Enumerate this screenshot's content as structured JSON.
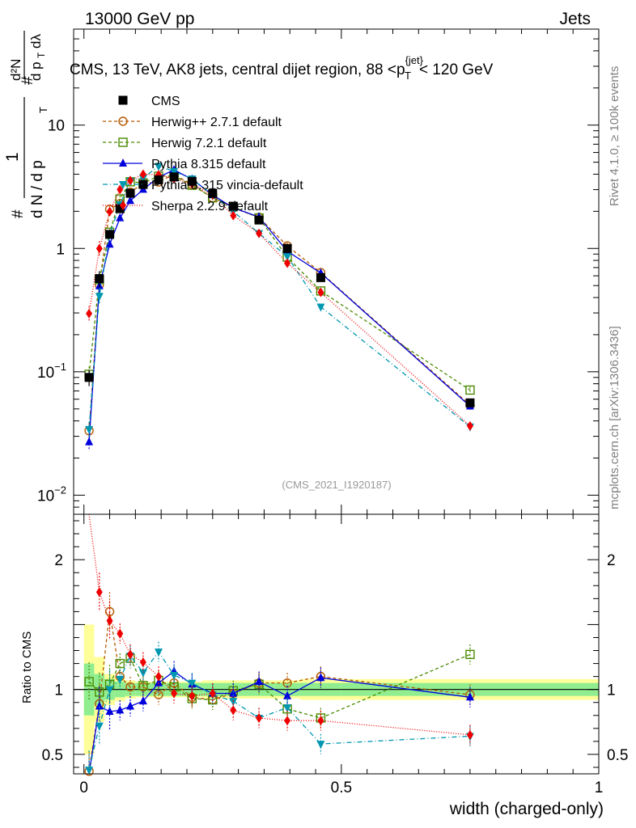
{
  "header": {
    "energy_label": "13000 GeV pp",
    "category_label": "Jets"
  },
  "side_labels": {
    "rivet": "Rivet 4.1.0, ≥ 100k events",
    "mcplots": "mcplots.cern.ch [arXiv:1306.3436]"
  },
  "chart_data": {
    "type": "scatter",
    "title": "CMS, 13 TeV, AK8 jets, central dijet region, 88 <p_T^{jet}< 120 GeV",
    "title_parts": {
      "pre": "CMS, 13 TeV, AK8 jets, central dijet region, 88 <p",
      "sub": "T",
      "sup": "{jet}",
      "post": "< 120 GeV"
    },
    "analysis_id": "(CMS_2021_I1920187)",
    "xlabel": "width (charged-only)",
    "ylabel": "1/N dN/dp_T dλ  (# 1 over # d N / d p_T # d²N over # d p_T dλ)",
    "ylabel_parts": {
      "hash": "#",
      "one": "1",
      "dn": "d N / d p",
      "t": "T",
      "d2n": "d²N",
      "dp": "d p",
      "dl": "dλ"
    },
    "ratio_ylabel": "Ratio to CMS",
    "xlim": [
      -0.02,
      1.0
    ],
    "ylim_main": [
      0.007,
      60
    ],
    "yscale_main": "log",
    "ylim_ratio": [
      0.35,
      2.35
    ],
    "x_ticks": [
      0,
      0.5,
      1
    ],
    "x_tick_labels": [
      "0",
      "0.5",
      "1"
    ],
    "y_main_ticks": [
      0.01,
      0.1,
      1,
      10
    ],
    "y_main_tick_labels": [
      {
        "base": "10",
        "exp": "−2"
      },
      {
        "base": "10",
        "exp": "−1"
      },
      {
        "base": "1",
        "exp": ""
      },
      {
        "base": "10",
        "exp": ""
      }
    ],
    "y_ratio_ticks": [
      0.5,
      1,
      2
    ],
    "y_ratio_tick_labels": [
      "0.5",
      "1",
      "2"
    ],
    "x": [
      0.01,
      0.03,
      0.05,
      0.07,
      0.09,
      0.115,
      0.145,
      0.175,
      0.21,
      0.25,
      0.29,
      0.34,
      0.395,
      0.46,
      0.75
    ],
    "legend": {
      "placement": "top-left",
      "entries": [
        "CMS",
        "Herwig++ 2.7.1 default",
        "Herwig 7.2.1 default",
        "Pythia 8.315 default",
        "Pythia 8.315 vincia-default",
        "Sherpa 2.2.9 default"
      ]
    },
    "data": {
      "name": "CMS",
      "color": "#000000",
      "marker": "square",
      "values": [
        0.09,
        0.57,
        1.3,
        2.1,
        2.8,
        3.3,
        3.6,
        3.8,
        3.5,
        2.8,
        2.2,
        1.7,
        1.0,
        0.58,
        0.056
      ]
    },
    "bands": {
      "stat_color": "#90ee90",
      "total_color": "#ffff99",
      "stat_rel": [
        0.2,
        0.12,
        0.08,
        0.06,
        0.05,
        0.05,
        0.05,
        0.05,
        0.05,
        0.05,
        0.05,
        0.05,
        0.05,
        0.05,
        0.05
      ],
      "total_rel": [
        0.5,
        0.25,
        0.12,
        0.09,
        0.07,
        0.06,
        0.06,
        0.06,
        0.06,
        0.07,
        0.07,
        0.07,
        0.07,
        0.08,
        0.08
      ],
      "edges": [
        0.0,
        0.02,
        0.04,
        0.06,
        0.08,
        0.1,
        0.13,
        0.16,
        0.19,
        0.23,
        0.27,
        0.31,
        0.37,
        0.42,
        0.5,
        1.0
      ]
    },
    "series": [
      {
        "name": "Herwig++ 2.7.1 default",
        "color": "#b35900",
        "marker": "open-circle",
        "dash": "4,3",
        "ratio": [
          0.37,
          0.89,
          1.6,
          1.1,
          1.02,
          1.02,
          0.96,
          1.05,
          0.94,
          0.92,
          0.97,
          1.05,
          1.05,
          1.1,
          0.96
        ]
      },
      {
        "name": "Herwig 7.2.1 default",
        "color": "#4a8a00",
        "marker": "open-square",
        "dash": "4,3",
        "ratio": [
          1.06,
          0.98,
          1.04,
          1.2,
          1.24,
          1.03,
          1.07,
          1.02,
          0.93,
          0.92,
          0.99,
          1.04,
          0.85,
          0.78,
          1.27
        ]
      },
      {
        "name": "Pythia 8.315 default",
        "color": "#0000dd",
        "marker": "triangle-up",
        "dash": "",
        "ratio": [
          0.3,
          0.87,
          0.83,
          0.84,
          0.87,
          0.91,
          1.05,
          1.14,
          1.04,
          0.97,
          0.97,
          1.06,
          0.95,
          1.09,
          0.94
        ]
      },
      {
        "name": "Pythia 8.315 vincia-default",
        "color": "#0097b0",
        "marker": "triangle-down",
        "dash": "6,3,1,3",
        "ratio": [
          0.38,
          0.72,
          1.0,
          1.08,
          1.26,
          1.13,
          1.29,
          1.11,
          1.05,
          0.96,
          0.91,
          0.78,
          0.86,
          0.58,
          0.64
        ]
      },
      {
        "name": "Sherpa 2.2.9 default",
        "color": "#ee0000",
        "marker": "diamond",
        "dash": "1,2",
        "ratio": [
          3.3,
          1.75,
          1.53,
          1.43,
          1.27,
          1.21,
          1.1,
          0.97,
          0.95,
          0.97,
          0.84,
          0.78,
          0.76,
          0.76,
          0.65
        ]
      }
    ]
  }
}
